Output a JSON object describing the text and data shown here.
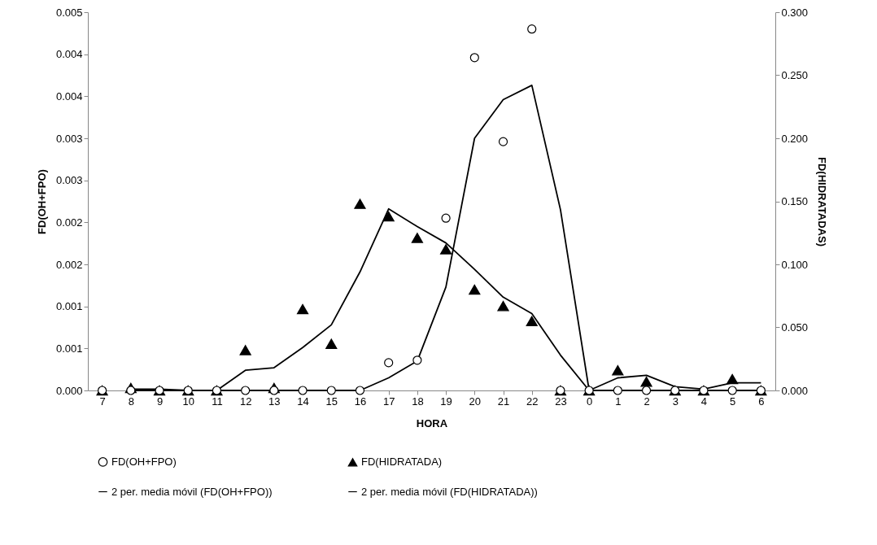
{
  "chart_data": {
    "type": "scatter",
    "xlabel": "HORA",
    "ylabel": "FD(OH+FPO)",
    "y2label": "FD(HIDRATADAS)",
    "categories": [
      "7",
      "8",
      "9",
      "10",
      "11",
      "12",
      "13",
      "14",
      "15",
      "16",
      "17",
      "18",
      "19",
      "20",
      "21",
      "22",
      "23",
      "0",
      "1",
      "2",
      "3",
      "4",
      "5",
      "6"
    ],
    "ylim": [
      0,
      0.0045
    ],
    "yticks": [
      {
        "value": 0,
        "label": "0.000"
      },
      {
        "value": 0.0005,
        "label": "0.001"
      },
      {
        "value": 0.001,
        "label": "0.001"
      },
      {
        "value": 0.0015,
        "label": "0.002"
      },
      {
        "value": 0.002,
        "label": "0.002"
      },
      {
        "value": 0.0025,
        "label": "0.003"
      },
      {
        "value": 0.003,
        "label": "0.003"
      },
      {
        "value": 0.0035,
        "label": "0.004"
      },
      {
        "value": 0.004,
        "label": "0.004"
      },
      {
        "value": 0.0045,
        "label": "0.005"
      }
    ],
    "y2lim": [
      0,
      0.3
    ],
    "y2ticks": [
      {
        "value": 0,
        "label": "0.000"
      },
      {
        "value": 0.05,
        "label": "0.050"
      },
      {
        "value": 0.1,
        "label": "0.100"
      },
      {
        "value": 0.15,
        "label": "0.150"
      },
      {
        "value": 0.2,
        "label": "0.200"
      },
      {
        "value": 0.25,
        "label": "0.250"
      },
      {
        "value": 0.3,
        "label": "0.300"
      }
    ],
    "legend": "bottom",
    "series": [
      {
        "name": "FD(OH+FPO)",
        "type": "scatter",
        "marker": "circle",
        "color": "#000000",
        "values": [
          0,
          0,
          0,
          0,
          0,
          0,
          0,
          0,
          0,
          0,
          0.00033,
          0.00036,
          0.00205,
          0.00396,
          0.00296,
          0.0043,
          0,
          0,
          0,
          0,
          0,
          0,
          0,
          0
        ]
      },
      {
        "name": "FD(HIDRATADA)",
        "type": "scatter",
        "marker": "triangle",
        "axis": "y2",
        "color": "#000000",
        "values": [
          0,
          0.002,
          0,
          0,
          0,
          0.032,
          0.002,
          0.0645,
          0.037,
          0.148,
          0.138,
          0.121,
          0.112,
          0.08,
          0.067,
          0.055,
          0,
          0,
          0.016,
          0.007,
          0,
          0,
          0.009,
          0
        ]
      },
      {
        "name": "2 per. media móvil (FD(OH+FPO))",
        "type": "line",
        "color": "#000000",
        "values": [
          null,
          0,
          0,
          0,
          0,
          0,
          0,
          0,
          0,
          0,
          0.00015,
          0.00035,
          0.00123,
          0.003,
          0.00346,
          0.00363,
          0.00215,
          0,
          0,
          0,
          0,
          0,
          0,
          0
        ]
      },
      {
        "name": "2 per. media móvil (FD(HIDRATADA))",
        "type": "line",
        "axis": "y2",
        "color": "#000000",
        "values": [
          null,
          0.001,
          0.001,
          0,
          0,
          0.016,
          0.018,
          0.034,
          0.052,
          0.094,
          0.144,
          0.13,
          0.117,
          0.096,
          0.074,
          0.061,
          0.028,
          0,
          0.01,
          0.012,
          0.003,
          0.001,
          0.006,
          0.006
        ]
      }
    ]
  }
}
